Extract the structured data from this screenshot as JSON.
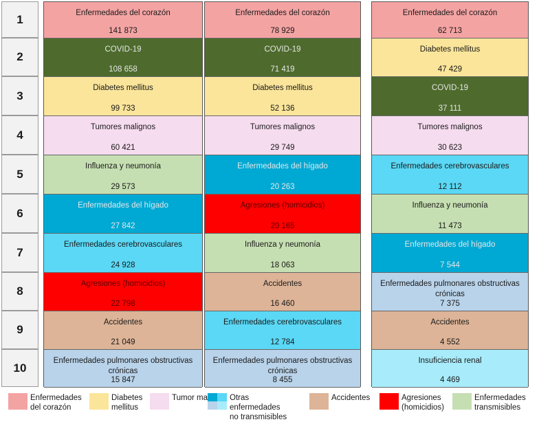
{
  "ranks": [
    "1",
    "2",
    "3",
    "4",
    "5",
    "6",
    "7",
    "8",
    "9",
    "10"
  ],
  "colors": {
    "heart": "#f4a3a3",
    "covid": "#4e6b2d",
    "diabetes": "#fbe59a",
    "tumors": "#f6dcef",
    "influenza": "#c6dfb2",
    "liver": "#00a9d4",
    "cerebro": "#5ad8f5",
    "homicide": "#ff0000",
    "accidents": "#ddb497",
    "copd": "#b9d3ea",
    "renal": "#a8ecfb"
  },
  "chart_data": {
    "type": "table",
    "rows": 10,
    "columns": [
      {
        "cells": [
          {
            "label": "Enfermedades del corazón",
            "value": "141 873",
            "category": "heart"
          },
          {
            "label": "COVID-19",
            "value": "108 658",
            "category": "covid"
          },
          {
            "label": "Diabetes mellitus",
            "value": "99 733",
            "category": "diabetes"
          },
          {
            "label": "Tumores malignos",
            "value": "60 421",
            "category": "tumors"
          },
          {
            "label": "Influenza y neumonía",
            "value": "29 573",
            "category": "influenza"
          },
          {
            "label": "Enfermedades del hígado",
            "value": "27 842",
            "category": "liver"
          },
          {
            "label": "Enfermedades cerebrovasculares",
            "value": "24 928",
            "category": "cerebro"
          },
          {
            "label": "Agresiones (homicidios)",
            "value": "22 798",
            "category": "homicide"
          },
          {
            "label": "Accidentes",
            "value": "21 049",
            "category": "accidents"
          },
          {
            "label": "Enfermedades pulmonares obstructivas crónicas",
            "value": "15 847",
            "category": "copd"
          }
        ]
      },
      {
        "cells": [
          {
            "label": "Enfermedades del corazón",
            "value": "78 929",
            "category": "heart"
          },
          {
            "label": "COVID-19",
            "value": "71 419",
            "category": "covid"
          },
          {
            "label": "Diabetes mellitus",
            "value": "52 136",
            "category": "diabetes"
          },
          {
            "label": "Tumores malignos",
            "value": "29 749",
            "category": "tumors"
          },
          {
            "label": "Enfermedades del hígado",
            "value": "20 263",
            "category": "liver"
          },
          {
            "label": "Agresiones (homicidios)",
            "value": "20 165",
            "category": "homicide"
          },
          {
            "label": "Influenza y neumonía",
            "value": "18 063",
            "category": "influenza"
          },
          {
            "label": "Accidentes",
            "value": "16 460",
            "category": "accidents"
          },
          {
            "label": "Enfermedades cerebrovasculares",
            "value": "12 784",
            "category": "cerebro"
          },
          {
            "label": "Enfermedades pulmonares obstructivas crónicas",
            "value": "8 455",
            "category": "copd"
          }
        ]
      },
      {
        "cells": [
          {
            "label": "Enfermedades del corazón",
            "value": "62 713",
            "category": "heart"
          },
          {
            "label": "Diabetes mellitus",
            "value": "47 429",
            "category": "diabetes"
          },
          {
            "label": "COVID-19",
            "value": "37 111",
            "category": "covid"
          },
          {
            "label": "Tumores malignos",
            "value": "30 623",
            "category": "tumors"
          },
          {
            "label": "Enfermedades cerebrovasculares",
            "value": "12 112",
            "category": "cerebro"
          },
          {
            "label": "Influenza y neumonía",
            "value": "11 473",
            "category": "influenza"
          },
          {
            "label": "Enfermedades del hígado",
            "value": "7 544",
            "category": "liver"
          },
          {
            "label": "Enfermedades pulmonares obstructivas crónicas",
            "value": "7 375",
            "category": "copd"
          },
          {
            "label": "Accidentes",
            "value": "4 552",
            "category": "accidents"
          },
          {
            "label": "Insuficiencia renal",
            "value": "4 469",
            "category": "renal"
          }
        ]
      }
    ]
  },
  "legend": [
    {
      "label": "Enfermedades del corazón",
      "category": "heart"
    },
    {
      "label": "Diabetes mellitus",
      "category": "diabetes"
    },
    {
      "label": "Tumor maligno",
      "category": "tumors"
    },
    {
      "label": "Otras enfermedades no transmisibles",
      "categories": [
        "liver",
        "cerebro",
        "copd",
        "renal"
      ]
    },
    {
      "label": "Accidentes",
      "category": "accidents"
    },
    {
      "label": "Agresiones (homicidios)",
      "category": "homicide"
    },
    {
      "label": "Enfermedades transmisibles",
      "category": "influenza"
    }
  ]
}
